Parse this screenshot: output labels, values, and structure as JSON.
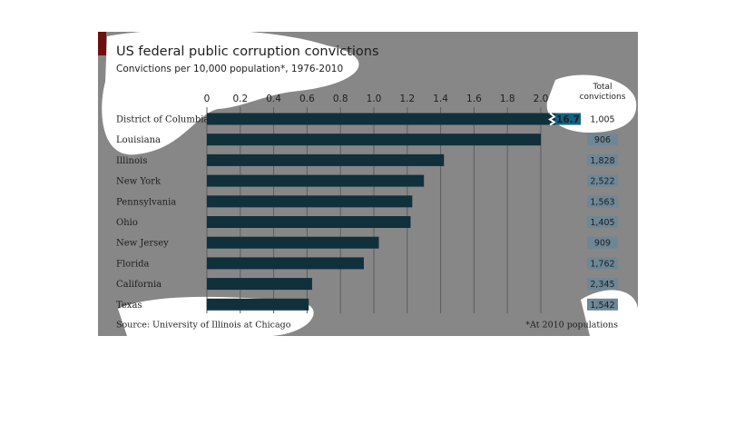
{
  "chart_data": {
    "type": "barh",
    "title": "US federal public corruption convictions",
    "subtitle": "Convictions per 10,000 population*, 1976-2010",
    "categories": [
      "District of Columbia",
      "Louisiana",
      "Illinois",
      "New York",
      "Pennsylvania",
      "Ohio",
      "New Jersey",
      "Florida",
      "California",
      "Texas"
    ],
    "values": [
      16.7,
      2.0,
      1.42,
      1.3,
      1.23,
      1.22,
      1.03,
      0.94,
      0.63,
      0.61
    ],
    "value_labels": [
      "16.7",
      null,
      null,
      null,
      null,
      null,
      null,
      null,
      null,
      null
    ],
    "color": "#10303b",
    "xlim": [
      0,
      2.0
    ],
    "xticks": [
      0,
      0.2,
      0.4,
      0.6,
      0.8,
      {
        "value": 1,
        "label": "1.0"
      },
      1.2,
      1.4,
      1.6,
      1.8,
      {
        "value": 2,
        "label": "2.0"
      }
    ],
    "grid": true,
    "totals_header": "Total convictions",
    "totals": [
      "1,005",
      "906",
      "1,828",
      "2,522",
      "1,563",
      "1,405",
      "909",
      "1,762",
      "2,345",
      "1,542"
    ],
    "source": "Source: University of Illinois at Chicago",
    "footnote": "*At 2010 populations"
  }
}
